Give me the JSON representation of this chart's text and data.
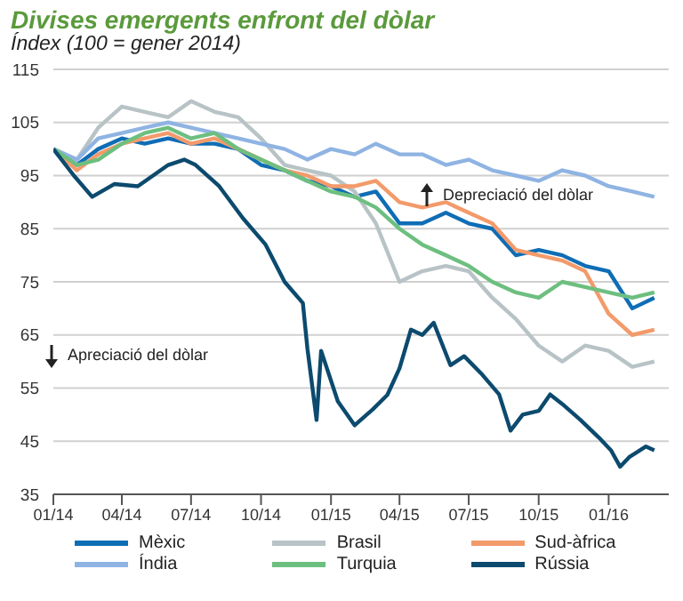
{
  "chart_data": {
    "type": "line",
    "title": "Divises emergents enfront del dòlar",
    "subtitle": "Índex (100 = gener 2014)",
    "annotations": [
      "Depreciació del dòlar",
      "Apreciació del dòlar"
    ],
    "xlim": [
      "2014-01-01",
      "2016-03-20"
    ],
    "xticks": [
      {
        "value": "2014-01-01",
        "label": "01/14"
      },
      {
        "value": "2014-04-01",
        "label": "04/14"
      },
      {
        "value": "2014-07-01",
        "label": "07/14"
      },
      {
        "value": "2014-10-01",
        "label": "10/14"
      },
      {
        "value": "2015-01-01",
        "label": "01/15"
      },
      {
        "value": "2015-04-01",
        "label": "04/15"
      },
      {
        "value": "2015-07-01",
        "label": "07/15"
      },
      {
        "value": "2015-10-01",
        "label": "10/15"
      },
      {
        "value": "2016-01-01",
        "label": "01/16"
      }
    ],
    "ylim": [
      35,
      115
    ],
    "yticks": [
      35,
      45,
      55,
      65,
      75,
      85,
      95,
      105,
      115
    ],
    "grid": "y",
    "legend": "bottom",
    "marker": "none",
    "line_style": "solid",
    "x": [
      "2014-01-01",
      "2014-02-01",
      "2014-03-01",
      "2014-04-01",
      "2014-05-01",
      "2014-06-01",
      "2014-07-01",
      "2014-08-01",
      "2014-09-01",
      "2014-10-01",
      "2014-11-01",
      "2014-12-01",
      "2015-01-01",
      "2015-02-01",
      "2015-03-01",
      "2015-04-01",
      "2015-05-01",
      "2015-06-01",
      "2015-07-01",
      "2015-08-01",
      "2015-09-01",
      "2015-10-01",
      "2015-11-01",
      "2015-12-01",
      "2016-01-01",
      "2016-02-01",
      "2016-03-01"
    ],
    "series": [
      {
        "name": "Mèxic",
        "color": "#0f6db5",
        "values": [
          100,
          97,
          100,
          102,
          101,
          102,
          101,
          101,
          100,
          97,
          96,
          94,
          93,
          91,
          92,
          86,
          86,
          88,
          86,
          85,
          80,
          81,
          80,
          78,
          77,
          70,
          72
        ]
      },
      {
        "name": "Brasil",
        "color": "#b8c3c6",
        "values": [
          100,
          98,
          104,
          108,
          107,
          106,
          109,
          107,
          106,
          102,
          97,
          96,
          95,
          92,
          86,
          75,
          77,
          78,
          77,
          72,
          68,
          63,
          60,
          63,
          62,
          59,
          60
        ]
      },
      {
        "name": "Sud-àfrica",
        "color": "#f39a6b",
        "values": [
          100,
          96,
          99,
          101,
          102,
          103,
          101,
          102,
          100,
          98,
          96,
          95,
          93,
          93,
          94,
          90,
          89,
          90,
          88,
          86,
          81,
          80,
          79,
          77,
          69,
          65,
          66
        ]
      },
      {
        "name": "Índia",
        "color": "#8fb4e3",
        "values": [
          100,
          98,
          102,
          103,
          104,
          105,
          104,
          103,
          102,
          101,
          100,
          98,
          100,
          99,
          101,
          99,
          99,
          97,
          98,
          96,
          95,
          94,
          96,
          95,
          93,
          92,
          91
        ]
      },
      {
        "name": "Turquia",
        "color": "#6dbf7f",
        "values": [
          100,
          97,
          98,
          101,
          103,
          104,
          102,
          103,
          100,
          98,
          96,
          94,
          92,
          91,
          89,
          85,
          82,
          80,
          78,
          75,
          73,
          72,
          75,
          74,
          73,
          72,
          73
        ]
      },
      {
        "name": "Rússia",
        "color": "#0c4a6e",
        "x": [
          "2014-01-01",
          "2014-01-28",
          "2014-02-21",
          "2014-03-22",
          "2014-04-22",
          "2014-06-01",
          "2014-06-22",
          "2014-07-07",
          "2014-08-07",
          "2014-09-07",
          "2014-10-07",
          "2014-11-01",
          "2014-11-10",
          "2014-11-25",
          "2014-12-01",
          "2014-12-13",
          "2014-12-19",
          "2015-01-10",
          "2015-02-01",
          "2015-02-25",
          "2015-03-16",
          "2015-04-01",
          "2015-04-16",
          "2015-05-01",
          "2015-05-16",
          "2015-06-07",
          "2015-06-25",
          "2015-07-19",
          "2015-08-10",
          "2015-08-25",
          "2015-09-10",
          "2015-10-01",
          "2015-10-16",
          "2015-11-01",
          "2015-11-25",
          "2015-12-19",
          "2016-01-04",
          "2016-01-16",
          "2016-01-28",
          "2016-02-19",
          "2016-03-01"
        ],
        "values": [
          100,
          95,
          91,
          93.4,
          93,
          97,
          98,
          97,
          93,
          87,
          82,
          75,
          73.5,
          71,
          62.4,
          49,
          62,
          52.5,
          48,
          51,
          53.7,
          58.7,
          66,
          65,
          67.3,
          59.3,
          61,
          57.5,
          53.8,
          47,
          50,
          50.7,
          53.8,
          52,
          49,
          45.7,
          43.3,
          40.2,
          42,
          44,
          43.3
        ]
      }
    ]
  }
}
